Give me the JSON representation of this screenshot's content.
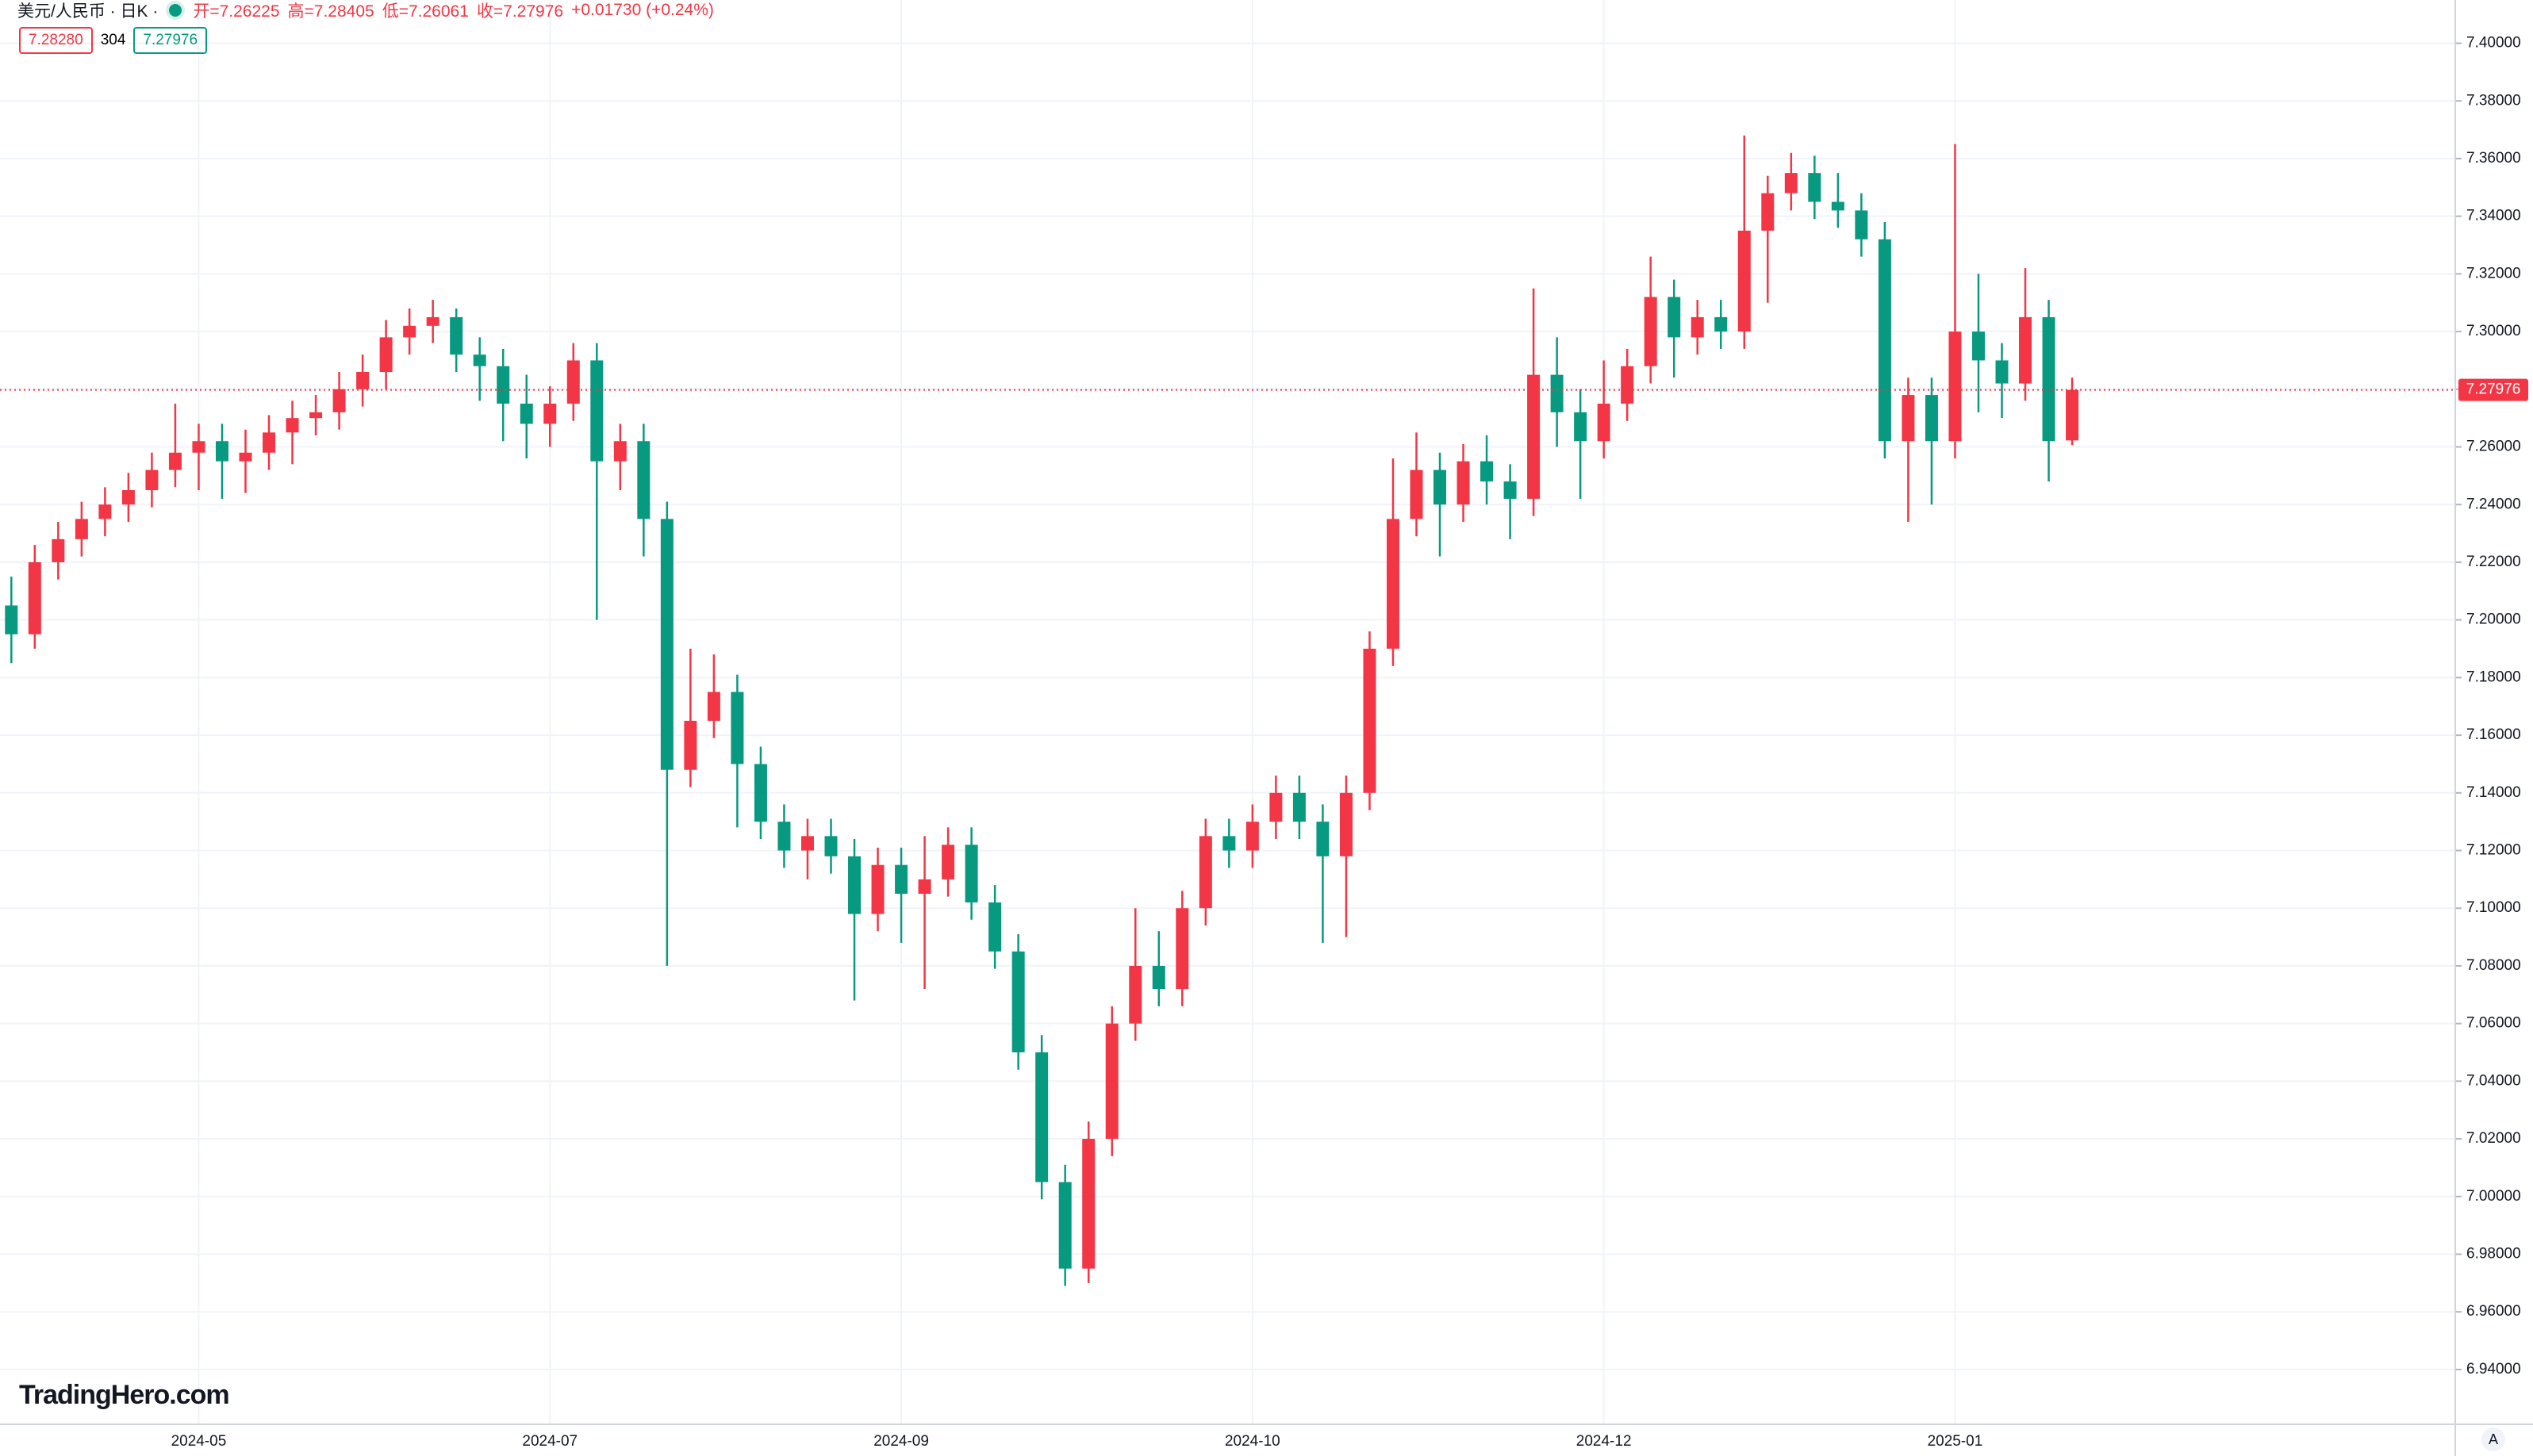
{
  "chart_data": {
    "type": "candlestick",
    "header": {
      "symbol": "美元/人民币 · 日K ·",
      "open": "开=7.26225",
      "high": "高=7.28405",
      "low": "低=7.26061",
      "close": "收=7.27976",
      "change": "+0.01730 (+0.24%)",
      "bid": "7.28280",
      "spread": "304",
      "ask": "7.27976"
    },
    "watermark": "TradingHero.com",
    "scale_button": "A",
    "up_color": "#f23645",
    "down_color": "#089981",
    "grid": true,
    "ylim": [
      6.921,
      7.415
    ],
    "yticks": [
      {
        "value": 6.94,
        "label": "6.94000"
      },
      {
        "value": 6.96,
        "label": "6.96000"
      },
      {
        "value": 6.98,
        "label": "6.98000"
      },
      {
        "value": 7.0,
        "label": "7.00000"
      },
      {
        "value": 7.02,
        "label": "7.02000"
      },
      {
        "value": 7.04,
        "label": "7.04000"
      },
      {
        "value": 7.06,
        "label": "7.06000"
      },
      {
        "value": 7.08,
        "label": "7.08000"
      },
      {
        "value": 7.1,
        "label": "7.10000"
      },
      {
        "value": 7.12,
        "label": "7.12000"
      },
      {
        "value": 7.14,
        "label": "7.14000"
      },
      {
        "value": 7.16,
        "label": "7.16000"
      },
      {
        "value": 7.18,
        "label": "7.18000"
      },
      {
        "value": 7.2,
        "label": "7.20000"
      },
      {
        "value": 7.22,
        "label": "7.22000"
      },
      {
        "value": 7.24,
        "label": "7.24000"
      },
      {
        "value": 7.26,
        "label": "7.26000"
      },
      {
        "value": 7.28,
        "label": "7.28000"
      },
      {
        "value": 7.3,
        "label": "7.30000"
      },
      {
        "value": 7.32,
        "label": "7.32000"
      },
      {
        "value": 7.34,
        "label": "7.34000"
      },
      {
        "value": 7.36,
        "label": "7.36000"
      },
      {
        "value": 7.38,
        "label": "7.38000"
      },
      {
        "value": 7.4,
        "label": "7.40000"
      }
    ],
    "categories": [
      null,
      null,
      null,
      null,
      null,
      null,
      null,
      null,
      "2024-05",
      null,
      null,
      null,
      null,
      null,
      null,
      null,
      null,
      null,
      null,
      null,
      null,
      null,
      null,
      "2024-07",
      null,
      null,
      null,
      null,
      null,
      null,
      null,
      null,
      null,
      null,
      null,
      null,
      null,
      null,
      "2024-09",
      null,
      null,
      null,
      null,
      null,
      null,
      null,
      null,
      null,
      null,
      null,
      null,
      null,
      null,
      "2024-10",
      null,
      null,
      null,
      null,
      null,
      null,
      null,
      null,
      null,
      null,
      null,
      null,
      null,
      null,
      "2024-12",
      null,
      null,
      null,
      null,
      null,
      null,
      null,
      null,
      null,
      null,
      null,
      null,
      null,
      null,
      "2025-01",
      null,
      null,
      null,
      null,
      null
    ],
    "ohlc": [
      [
        7.205,
        7.215,
        7.185,
        7.195
      ],
      [
        7.195,
        7.226,
        7.19,
        7.22
      ],
      [
        7.22,
        7.234,
        7.214,
        7.228
      ],
      [
        7.228,
        7.241,
        7.222,
        7.235
      ],
      [
        7.235,
        7.246,
        7.229,
        7.24
      ],
      [
        7.24,
        7.251,
        7.234,
        7.245
      ],
      [
        7.245,
        7.258,
        7.239,
        7.252
      ],
      [
        7.252,
        7.275,
        7.246,
        7.258
      ],
      [
        7.258,
        7.268,
        7.245,
        7.262
      ],
      [
        7.262,
        7.268,
        7.242,
        7.255
      ],
      [
        7.255,
        7.266,
        7.244,
        7.258
      ],
      [
        7.258,
        7.271,
        7.252,
        7.265
      ],
      [
        7.265,
        7.276,
        7.254,
        7.27
      ],
      [
        7.27,
        7.278,
        7.264,
        7.272
      ],
      [
        7.272,
        7.286,
        7.266,
        7.28
      ],
      [
        7.28,
        7.292,
        7.274,
        7.286
      ],
      [
        7.286,
        7.304,
        7.28,
        7.298
      ],
      [
        7.298,
        7.308,
        7.292,
        7.302
      ],
      [
        7.302,
        7.311,
        7.296,
        7.305
      ],
      [
        7.305,
        7.308,
        7.286,
        7.292
      ],
      [
        7.292,
        7.298,
        7.276,
        7.288
      ],
      [
        7.288,
        7.294,
        7.262,
        7.275
      ],
      [
        7.275,
        7.285,
        7.256,
        7.268
      ],
      [
        7.268,
        7.281,
        7.26,
        7.275
      ],
      [
        7.275,
        7.296,
        7.269,
        7.29
      ],
      [
        7.29,
        7.296,
        7.2,
        7.255
      ],
      [
        7.255,
        7.268,
        7.245,
        7.262
      ],
      [
        7.262,
        7.268,
        7.222,
        7.235
      ],
      [
        7.235,
        7.241,
        7.08,
        7.148
      ],
      [
        7.148,
        7.19,
        7.142,
        7.165
      ],
      [
        7.165,
        7.188,
        7.159,
        7.175
      ],
      [
        7.175,
        7.181,
        7.128,
        7.15
      ],
      [
        7.15,
        7.156,
        7.124,
        7.13
      ],
      [
        7.13,
        7.136,
        7.114,
        7.12
      ],
      [
        7.12,
        7.131,
        7.11,
        7.125
      ],
      [
        7.125,
        7.131,
        7.112,
        7.118
      ],
      [
        7.118,
        7.124,
        7.068,
        7.098
      ],
      [
        7.098,
        7.121,
        7.092,
        7.115
      ],
      [
        7.115,
        7.121,
        7.088,
        7.105
      ],
      [
        7.105,
        7.125,
        7.072,
        7.11
      ],
      [
        7.11,
        7.128,
        7.104,
        7.122
      ],
      [
        7.122,
        7.128,
        7.096,
        7.102
      ],
      [
        7.102,
        7.108,
        7.079,
        7.085
      ],
      [
        7.085,
        7.091,
        7.044,
        7.05
      ],
      [
        7.05,
        7.056,
        6.999,
        7.005
      ],
      [
        7.005,
        7.011,
        6.969,
        6.975
      ],
      [
        6.975,
        7.026,
        6.97,
        7.02
      ],
      [
        7.02,
        7.066,
        7.014,
        7.06
      ],
      [
        7.06,
        7.1,
        7.054,
        7.08
      ],
      [
        7.08,
        7.092,
        7.066,
        7.072
      ],
      [
        7.072,
        7.106,
        7.066,
        7.1
      ],
      [
        7.1,
        7.131,
        7.094,
        7.125
      ],
      [
        7.125,
        7.131,
        7.114,
        7.12
      ],
      [
        7.12,
        7.136,
        7.114,
        7.13
      ],
      [
        7.13,
        7.146,
        7.124,
        7.14
      ],
      [
        7.14,
        7.146,
        7.124,
        7.13
      ],
      [
        7.13,
        7.136,
        7.088,
        7.118
      ],
      [
        7.118,
        7.146,
        7.09,
        7.14
      ],
      [
        7.14,
        7.196,
        7.134,
        7.19
      ],
      [
        7.19,
        7.256,
        7.184,
        7.235
      ],
      [
        7.235,
        7.265,
        7.229,
        7.252
      ],
      [
        7.252,
        7.258,
        7.222,
        7.24
      ],
      [
        7.24,
        7.261,
        7.234,
        7.255
      ],
      [
        7.255,
        7.264,
        7.24,
        7.248
      ],
      [
        7.248,
        7.254,
        7.228,
        7.242
      ],
      [
        7.242,
        7.315,
        7.236,
        7.285
      ],
      [
        7.285,
        7.298,
        7.26,
        7.272
      ],
      [
        7.272,
        7.28,
        7.242,
        7.262
      ],
      [
        7.262,
        7.29,
        7.256,
        7.275
      ],
      [
        7.275,
        7.294,
        7.269,
        7.288
      ],
      [
        7.288,
        7.326,
        7.282,
        7.312
      ],
      [
        7.312,
        7.318,
        7.284,
        7.298
      ],
      [
        7.298,
        7.311,
        7.292,
        7.305
      ],
      [
        7.305,
        7.311,
        7.294,
        7.3
      ],
      [
        7.3,
        7.368,
        7.294,
        7.335
      ],
      [
        7.335,
        7.354,
        7.31,
        7.348
      ],
      [
        7.348,
        7.362,
        7.342,
        7.355
      ],
      [
        7.355,
        7.361,
        7.339,
        7.345
      ],
      [
        7.345,
        7.355,
        7.336,
        7.342
      ],
      [
        7.342,
        7.348,
        7.326,
        7.332
      ],
      [
        7.332,
        7.338,
        7.256,
        7.262
      ],
      [
        7.262,
        7.284,
        7.234,
        7.278
      ],
      [
        7.278,
        7.284,
        7.24,
        7.262
      ],
      [
        7.262,
        7.365,
        7.256,
        7.3
      ],
      [
        7.3,
        7.32,
        7.272,
        7.29
      ],
      [
        7.29,
        7.296,
        7.27,
        7.282
      ],
      [
        7.282,
        7.322,
        7.276,
        7.305
      ],
      [
        7.305,
        7.311,
        7.248,
        7.262
      ],
      [
        7.26225,
        7.28405,
        7.26061,
        7.27976
      ]
    ]
  }
}
